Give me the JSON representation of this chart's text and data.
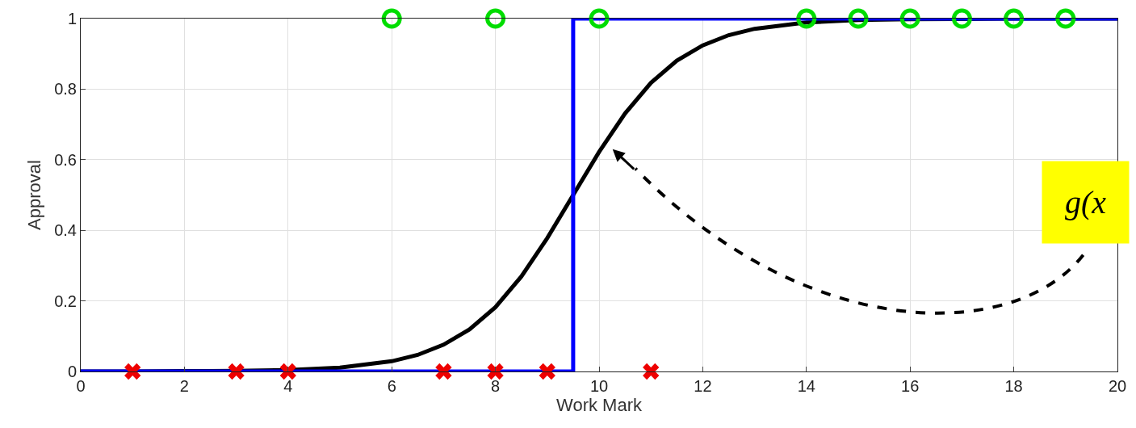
{
  "chart_data": {
    "type": "scatter",
    "xlabel": "Work Mark",
    "ylabel": "Approval",
    "xlim": [
      0,
      20
    ],
    "ylim": [
      0,
      1
    ],
    "xticks": [
      0,
      2,
      4,
      6,
      8,
      10,
      12,
      14,
      16,
      18,
      20
    ],
    "yticks": [
      0,
      0.2,
      0.4,
      0.6,
      0.8,
      1
    ],
    "grid": true,
    "legend": false,
    "series": [
      {
        "type": "line",
        "color": "#000000",
        "x": [
          0,
          1,
          2,
          3,
          4,
          5,
          6,
          6.5,
          7,
          7.5,
          8,
          8.5,
          9,
          9.5,
          10,
          10.5,
          11,
          11.5,
          12,
          12.5,
          13,
          14,
          15,
          16,
          17,
          18,
          19,
          20
        ],
        "values": [
          0,
          0,
          0.001,
          0.002,
          0.004,
          0.011,
          0.029,
          0.047,
          0.076,
          0.119,
          0.182,
          0.269,
          0.378,
          0.5,
          0.622,
          0.731,
          0.818,
          0.881,
          0.924,
          0.953,
          0.971,
          0.989,
          0.996,
          0.998,
          0.999,
          1,
          1,
          1
        ],
        "marker": "none",
        "line_style": "solid"
      },
      {
        "type": "step",
        "color": "#0000ff",
        "x": [
          0,
          9.5,
          20
        ],
        "values": [
          0,
          1,
          1
        ],
        "marker": "none",
        "line_style": "solid"
      },
      {
        "color": "#ee0000",
        "x": [
          1,
          3,
          4,
          7,
          8,
          9,
          11
        ],
        "values": [
          0,
          0,
          0,
          0,
          0,
          0,
          0
        ],
        "marker": "cross"
      },
      {
        "color": "#00dd00",
        "x": [
          6,
          8,
          10,
          14,
          15,
          16,
          17,
          18,
          19
        ],
        "values": [
          1,
          1,
          1,
          1,
          1,
          1,
          1,
          1,
          1
        ],
        "marker": "circle"
      }
    ],
    "annotations": [
      "g(x"
    ]
  }
}
